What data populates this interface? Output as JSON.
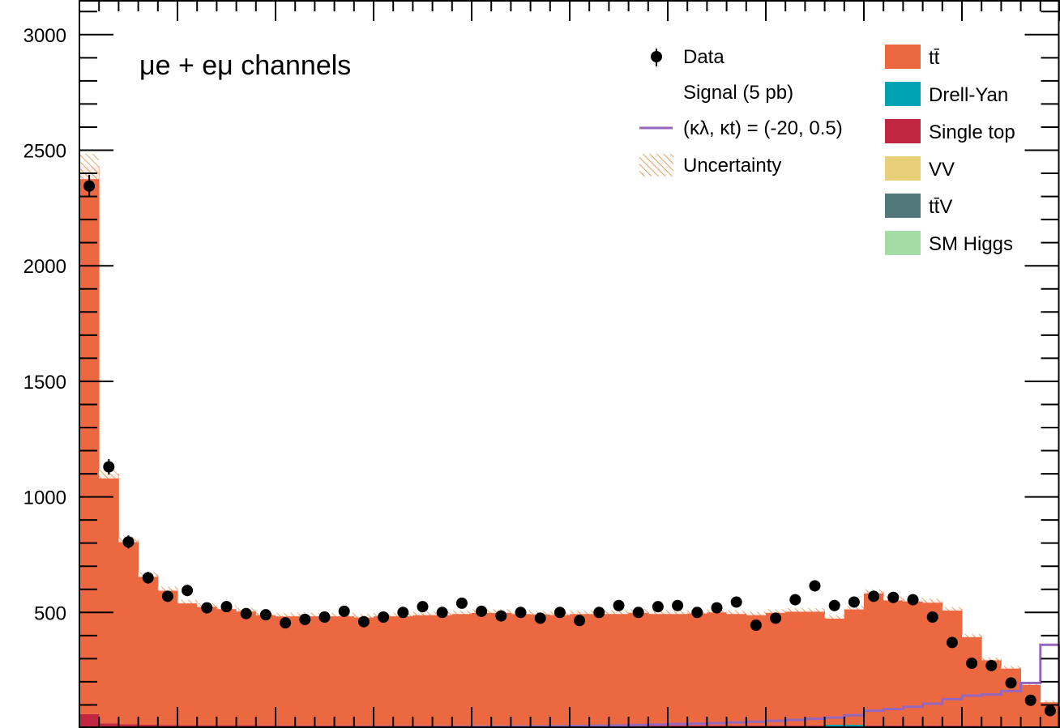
{
  "chart_data": {
    "type": "bar",
    "stacked": true,
    "annotation": "μe + eμ channels",
    "title": "",
    "xlabel": "",
    "ylabel": "",
    "ylim": [
      0,
      3150
    ],
    "yticks": [
      500,
      1000,
      1500,
      2000,
      2500,
      3000
    ],
    "xlim": [
      0,
      50
    ],
    "n_bins": 50,
    "grid": false,
    "legend_placement": "top-right",
    "colors": {
      "ttbar": "#ec6841",
      "drell_yan": "#00a3b2",
      "single_top": "#c0263f",
      "vv": "#e8d07a",
      "ttv": "#53787c",
      "sm_higgs": "#a5dba5",
      "signal_line": "#9467bd",
      "uncertainty": "#e0a060",
      "data": "#000000"
    },
    "legend": {
      "data": "Data",
      "signal_header": "Signal (5 pb)",
      "signal_line": "(κλ, κt) = (-20, 0.5)",
      "uncertainty": "Uncertainty",
      "ttbar": "tt̄",
      "drell_yan": "Drell-Yan",
      "single_top": "Single top",
      "vv": "VV",
      "ttv": "tt̄V",
      "sm_higgs": "SM Higgs"
    },
    "series": [
      {
        "name": "tt̄",
        "values": [
          2370,
          1080,
          800,
          650,
          590,
          535,
          520,
          510,
          500,
          485,
          480,
          480,
          480,
          480,
          475,
          480,
          480,
          485,
          485,
          490,
          495,
          495,
          490,
          488,
          485,
          490,
          490,
          490,
          495,
          490,
          490,
          492,
          497,
          490,
          485,
          495,
          500,
          500,
          470,
          510,
          580,
          550,
          545,
          540,
          505,
          390,
          290,
          255,
          185,
          110
        ]
      },
      {
        "name": "Single top",
        "values": [
          60,
          20,
          16,
          14,
          13,
          12,
          12,
          12,
          12,
          11,
          11,
          11,
          11,
          11,
          11,
          11,
          11,
          11,
          11,
          11,
          11,
          11,
          11,
          11,
          11,
          11,
          11,
          11,
          11,
          11,
          11,
          11,
          11,
          11,
          11,
          11,
          11,
          11,
          11,
          11,
          11,
          11,
          11,
          11,
          11,
          10,
          9,
          8,
          6,
          5
        ]
      }
    ],
    "total_background": [
      2430,
      1100,
      816,
      664,
      603,
      547,
      532,
      522,
      512,
      496,
      491,
      491,
      491,
      491,
      486,
      491,
      491,
      496,
      496,
      501,
      506,
      506,
      501,
      499,
      496,
      501,
      501,
      501,
      506,
      501,
      501,
      503,
      508,
      501,
      496,
      506,
      511,
      511,
      481,
      521,
      591,
      561,
      556,
      551,
      516,
      400,
      299,
      263,
      191,
      115
    ],
    "uncertainty_halfwidth": [
      55,
      20,
      12,
      10,
      9,
      8,
      8,
      8,
      8,
      8,
      8,
      8,
      8,
      8,
      8,
      8,
      8,
      8,
      8,
      8,
      8,
      8,
      8,
      8,
      8,
      8,
      8,
      8,
      8,
      8,
      8,
      8,
      8,
      8,
      8,
      8,
      8,
      8,
      8,
      8,
      9,
      9,
      9,
      9,
      8,
      7,
      6,
      6,
      5,
      4
    ],
    "signal": [
      1,
      1,
      1,
      1,
      1,
      1,
      1,
      1,
      1,
      1,
      2,
      2,
      2,
      2,
      3,
      3,
      3,
      3,
      4,
      4,
      5,
      5,
      6,
      7,
      8,
      9,
      10,
      11,
      13,
      15,
      17,
      19,
      21,
      24,
      27,
      31,
      35,
      40,
      45,
      55,
      75,
      82,
      92,
      105,
      125,
      140,
      145,
      160,
      195,
      360
    ],
    "data": [
      2345,
      1130,
      805,
      650,
      570,
      595,
      520,
      525,
      495,
      490,
      455,
      470,
      480,
      505,
      460,
      480,
      500,
      525,
      500,
      540,
      505,
      485,
      500,
      475,
      500,
      465,
      500,
      530,
      500,
      525,
      530,
      500,
      520,
      545,
      445,
      475,
      555,
      615,
      530,
      545,
      570,
      565,
      555,
      480,
      370,
      280,
      270,
      195,
      120,
      75
    ]
  }
}
